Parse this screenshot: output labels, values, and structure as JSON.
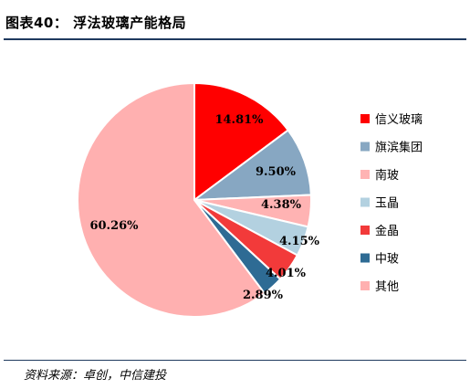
{
  "figure": {
    "title": "图表40：  浮法玻璃产能格局",
    "source": "资料来源：卓创，中信建投"
  },
  "chart_data": {
    "type": "pie",
    "categories": [
      "信义玻璃",
      "旗滨集团",
      "南玻",
      "玉晶",
      "金晶",
      "中玻",
      "其他"
    ],
    "values": [
      14.81,
      9.5,
      4.38,
      4.15,
      4.01,
      2.89,
      60.26
    ],
    "value_labels": [
      "14.81%",
      "9.50%",
      "4.38%",
      "4.15%",
      "4.01%",
      "2.89%",
      "60.26%"
    ],
    "colors": [
      "#ff0000",
      "#87a7c2",
      "#ffb3b3",
      "#b3d1e0",
      "#f23a3a",
      "#2e6b94",
      "#ffb0b0"
    ],
    "legend_position": "right",
    "start_angle": "12 o'clock",
    "direction": "clockwise"
  }
}
